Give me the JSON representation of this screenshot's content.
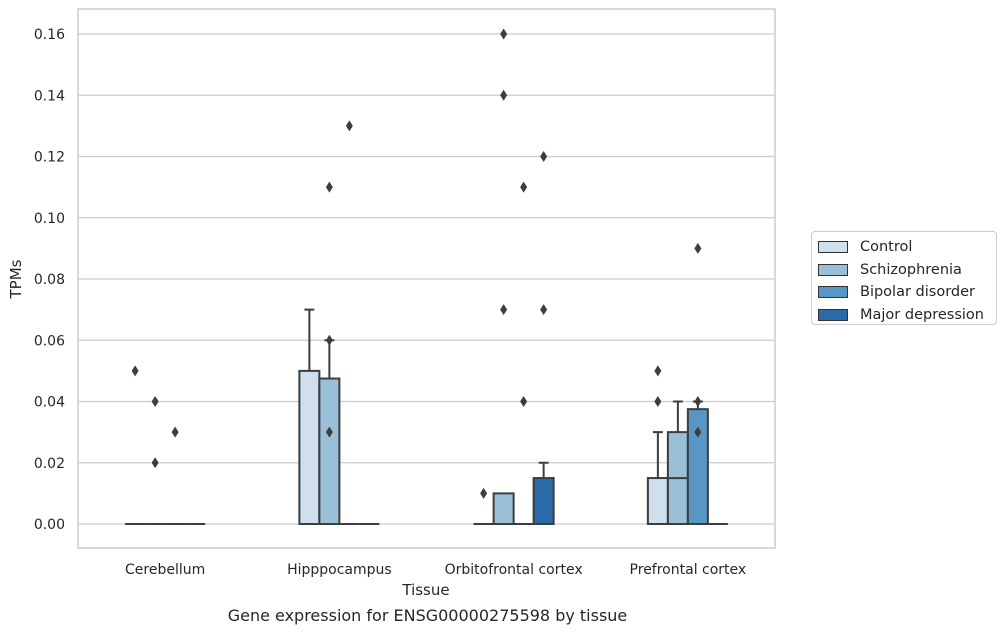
{
  "chart_data": {
    "type": "bar",
    "caption": "Gene expression for ENSG00000275598 by tissue",
    "xlabel": "Tissue",
    "ylabel": "TPMs",
    "ylim": [
      -0.008,
      0.168
    ],
    "yticks": [
      "0.00",
      "0.02",
      "0.04",
      "0.06",
      "0.08",
      "0.10",
      "0.12",
      "0.14",
      "0.16"
    ],
    "ytick_values": [
      0,
      0.02,
      0.04,
      0.06,
      0.08,
      0.1,
      0.12,
      0.14,
      0.16
    ],
    "grid": true,
    "legend_position": "right",
    "categories": [
      "Cerebellum",
      "Hipppocampus",
      "Orbitofrontal cortex",
      "Prefrontal cortex"
    ],
    "series": [
      {
        "name": "Control",
        "color": "#d0dfee",
        "values": [
          0,
          0.05,
          0,
          0.015
        ],
        "whisker_high": [
          0,
          0.07,
          0,
          0.03
        ],
        "outliers": [
          [
            0.05
          ],
          [],
          [
            0.01
          ],
          [
            0.04,
            0.05
          ]
        ]
      },
      {
        "name": "Schizophrenia",
        "color": "#9ac0d8",
        "values": [
          0,
          0.0475,
          0.01,
          0.03
        ],
        "box_low": [
          0,
          0,
          0,
          0.015
        ],
        "whisker_high": [
          0,
          0.06,
          0.01,
          0.04
        ],
        "outliers": [
          [
            0.02,
            0.04
          ],
          [
            0.03,
            0.06,
            0.11
          ],
          [
            0.07,
            0.14,
            0.16
          ],
          []
        ]
      },
      {
        "name": "Bipolar disorder",
        "color": "#5896c6",
        "values": [
          0,
          0,
          0,
          0.0375
        ],
        "whisker_high": [
          0,
          0,
          0,
          0.04
        ],
        "outliers": [
          [
            0.03
          ],
          [
            0.13
          ],
          [
            0.04,
            0.11
          ],
          [
            0.03,
            0.04,
            0.09
          ]
        ]
      },
      {
        "name": "Major depression",
        "color": "#2b6aa8",
        "values": [
          0,
          0,
          0.015,
          0
        ],
        "whisker_high": [
          0,
          0,
          0.02,
          0
        ],
        "outliers": [
          [],
          [],
          [
            0.07,
            0.12
          ],
          []
        ]
      }
    ]
  }
}
